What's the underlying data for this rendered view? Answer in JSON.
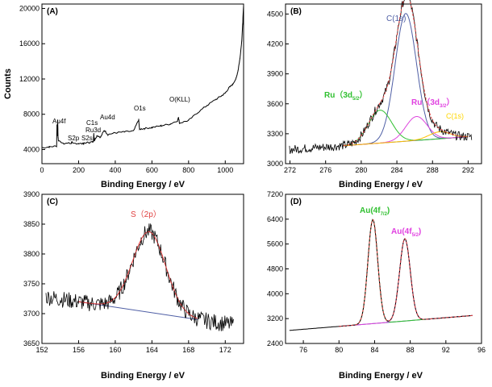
{
  "chart_data": [
    {
      "panel": "(A)",
      "type": "line",
      "title": "",
      "xlabel": "Binding Energy / eV",
      "ylabel": "Counts",
      "xlim": [
        0,
        1100
      ],
      "ylim": [
        2400,
        20500
      ],
      "xticks": [
        0,
        200,
        400,
        600,
        800,
        1000
      ],
      "yticks": [
        4000,
        8000,
        12000,
        16000,
        20000
      ],
      "series": [
        {
          "name": "survey",
          "color": "#000000",
          "x": [
            0,
            40,
            80,
            82,
            84,
            86,
            88,
            90,
            120,
            160,
            163,
            166,
            200,
            228,
            230,
            260,
            280,
            283,
            286,
            300,
            320,
            340,
            360,
            400,
            450,
            500,
            528,
            531,
            534,
            560,
            600,
            650,
            700,
            740,
            745,
            750,
            800,
            850,
            900,
            950,
            980,
            1000,
            1020,
            1040,
            1060,
            1070,
            1080,
            1090,
            1095,
            1100
          ],
          "y": [
            4200,
            4300,
            4400,
            6900,
            5600,
            7400,
            5400,
            5000,
            4700,
            4700,
            4900,
            4700,
            4700,
            4650,
            4750,
            4800,
            4900,
            5800,
            5000,
            5600,
            5400,
            6200,
            5700,
            5900,
            6000,
            6100,
            7400,
            6500,
            6300,
            6400,
            6500,
            6700,
            6900,
            7300,
            7700,
            7000,
            7300,
            8200,
            9000,
            9700,
            10100,
            10400,
            11000,
            11400,
            12100,
            13000,
            14300,
            16300,
            18200,
            20300
          ]
        }
      ],
      "annotations": [
        "Au4f",
        "S2p",
        "S2s",
        "C1s",
        "Ru3d",
        "Au4d",
        "O1s",
        "O(KLL)"
      ]
    },
    {
      "panel": "(B)",
      "type": "line",
      "title": "",
      "xlabel": "Binding Energy / eV",
      "ylabel": "",
      "xlim": [
        271.5,
        293.5
      ],
      "ylim": [
        3000,
        4600
      ],
      "xticks": [
        272,
        276,
        280,
        284,
        288,
        292
      ],
      "yticks": [
        3000,
        3300,
        3600,
        3900,
        4200,
        4500
      ],
      "components": [
        {
          "name": "C(1s)",
          "center": 285.0,
          "height": 1280,
          "width": 1.2,
          "color": "#4f5fa5"
        },
        {
          "name": "Ru(3d5/2)",
          "center": 282.1,
          "height": 330,
          "width": 1.3,
          "color": "#30c030"
        },
        {
          "name": "Ru(3d3/2)",
          "center": 286.2,
          "height": 240,
          "width": 1.2,
          "color": "#dd44dd"
        },
        {
          "name": "C(1s)",
          "center": 288.8,
          "height": 70,
          "width": 1.2,
          "color": "#ffc000"
        }
      ],
      "baseline": {
        "x": [
          278,
          292
        ],
        "y": [
          3180,
          3270
        ]
      },
      "noise_amplitude": 45,
      "annotations": [
        "C(1s)",
        "Ru（3d5/2）",
        "Ru（3d3/2）",
        "C(1s)"
      ]
    },
    {
      "panel": "(C)",
      "type": "line",
      "title": "",
      "xlabel": "Binding Energy / eV",
      "ylabel": "",
      "xlim": [
        152,
        174
      ],
      "ylim": [
        3650,
        3900
      ],
      "xticks": [
        152,
        156,
        160,
        164,
        168,
        172
      ],
      "yticks": [
        3650,
        3700,
        3750,
        3800,
        3850,
        3900
      ],
      "components": [
        {
          "name": "S(2p)",
          "center": 163.7,
          "height": 135,
          "width": 1.8,
          "color": "#e04040"
        }
      ],
      "baseline": {
        "x": [
          156,
          169
        ],
        "y": [
          3720,
          3690
        ]
      },
      "noise_amplitude": 14,
      "annotations": [
        "S（2p）"
      ]
    },
    {
      "panel": "(D)",
      "type": "line",
      "title": "",
      "xlabel": "Binding Energy / eV",
      "ylabel": "",
      "xlim": [
        74,
        96
      ],
      "ylim": [
        2400,
        7200
      ],
      "xticks": [
        76,
        80,
        84,
        88,
        92,
        96
      ],
      "yticks": [
        2400,
        3200,
        4000,
        4800,
        5600,
        6400,
        7200
      ],
      "components": [
        {
          "name": "Au(4f7/2)",
          "center": 83.8,
          "height": 3350,
          "width": 0.55,
          "color": "#30c030"
        },
        {
          "name": "Au(4f5/2)",
          "center": 87.4,
          "height": 2650,
          "width": 0.6,
          "color": "#dd44dd"
        }
      ],
      "baseline": {
        "x": [
          80,
          95
        ],
        "y": [
          2950,
          3300
        ]
      },
      "noise_amplitude": 0,
      "annotations": [
        "Au(4f7/2)",
        "Au(4f5/2)"
      ]
    }
  ],
  "text": {
    "panel_a": "(A)",
    "panel_b": "(B)",
    "panel_c": "(C)",
    "panel_d": "(D)",
    "xlabel": "Binding Energy / eV",
    "ylabel": "Counts",
    "ann_a": {
      "au4f": "Au4f",
      "s2p": "S2p",
      "s2s": "S2s",
      "c1s": "C1s",
      "ru3d": "Ru3d",
      "au4d": "Au4d",
      "o1s": "O1s",
      "okll": "O(KLL)"
    },
    "ann_b": {
      "c1s_main": "C(1s)",
      "ru52_pre": "Ru（3d",
      "ru52_sub": "5/2",
      "ru52_post": "）",
      "ru32_pre": "Ru（3d",
      "ru32_sub": "3/2",
      "ru32_post": "）",
      "c1s_small": "C(1s)"
    },
    "ann_c": {
      "s2p": "S（2p）"
    },
    "ann_d": {
      "au72_pre": "Au(4f",
      "au72_sub": "7/2",
      "au72_post": ")",
      "au52_pre": "Au(4f",
      "au52_sub": "5/2",
      "au52_post": ")"
    }
  },
  "colors": {
    "axis": "#000000",
    "data": "#000000",
    "fit": "#e04040",
    "label_green": "#30c030",
    "label_pink": "#e040e0",
    "label_yellow": "#ffd700",
    "label_blue": "#4f5fa5",
    "label_red": "#e04040"
  }
}
